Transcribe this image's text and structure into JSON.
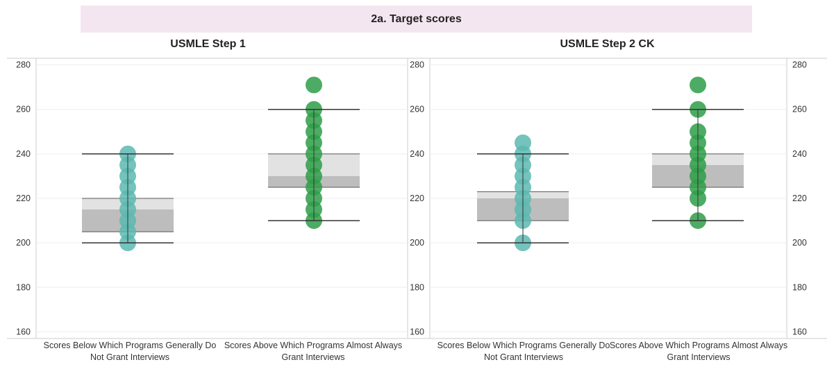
{
  "title": "2a. Target scores",
  "colors": {
    "title_bar": "#f4e6f1",
    "below_dots": "#5cb8b0",
    "above_dots": "#2e9e48",
    "box_upper": "#e2e2e2",
    "box_lower": "#bdbdbd",
    "whisker": "#333333",
    "grid": "#eeeeee",
    "axis": "#cccccc"
  },
  "yaxis": {
    "ticks": [
      "160",
      "180",
      "200",
      "220",
      "240",
      "260",
      "280"
    ]
  },
  "chart_data": [
    {
      "type": "box",
      "title": "USMLE Step 1",
      "ylim": [
        157,
        283
      ],
      "y_axis_side": "left",
      "categories": [
        {
          "label": "Scores Below Which Programs Generally Do Not Grant Interviews",
          "whisker_low": 200,
          "q1": 205,
          "median": 215,
          "q3": 220,
          "whisker_high": 240,
          "points": [
            200,
            205,
            210,
            215,
            220,
            225,
            230,
            235,
            240
          ]
        },
        {
          "label": "Scores Above Which Programs Almost Always Grant Interviews",
          "whisker_low": 210,
          "q1": 225,
          "median": 230,
          "q3": 240,
          "whisker_high": 260,
          "points": [
            210,
            215,
            220,
            225,
            230,
            235,
            240,
            245,
            250,
            255,
            260,
            271
          ]
        }
      ]
    },
    {
      "type": "box",
      "title": "USMLE Step 2 CK",
      "ylim": [
        157,
        283
      ],
      "y_axis_side": "both",
      "categories": [
        {
          "label": "Scores Below Which Programs Generally Do Not Grant Interviews",
          "whisker_low": 200,
          "q1": 210,
          "median": 220,
          "q3": 223,
          "whisker_high": 240,
          "points": [
            200,
            210,
            215,
            220,
            225,
            230,
            235,
            240,
            245
          ]
        },
        {
          "label": "Scores Above Which Programs Almost Always Grant Interviews",
          "whisker_low": 210,
          "q1": 225,
          "median": 235,
          "q3": 240,
          "whisker_high": 260,
          "points": [
            210,
            220,
            225,
            230,
            235,
            240,
            245,
            250,
            260,
            271
          ]
        }
      ]
    }
  ]
}
